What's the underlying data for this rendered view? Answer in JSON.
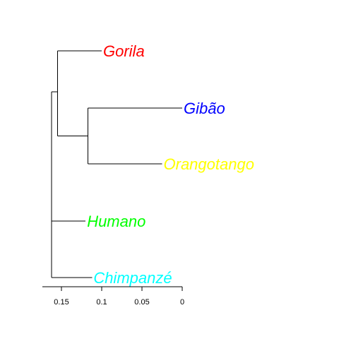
{
  "tree": {
    "tips": [
      {
        "id": "gorila",
        "label": "Gorila",
        "color": "#ff0000"
      },
      {
        "id": "gibao",
        "label": "Gibão",
        "color": "#0000ff"
      },
      {
        "id": "orangotango",
        "label": "Orangotango",
        "color": "#ffff00"
      },
      {
        "id": "humano",
        "label": "Humano",
        "color": "#00ff00"
      },
      {
        "id": "chimpanze",
        "label": "Chimpanzé",
        "color": "#00ffff"
      }
    ],
    "node_heights": {
      "root": 0.1625,
      "gorila_clade": 0.155,
      "gibao_orangotango": 0.117,
      "gorila": 0.1,
      "gibao": 0.0,
      "orangotango": 0.025,
      "humano": 0.12,
      "chimpanze": 0.112
    },
    "axis": {
      "ticks": [
        {
          "value": 0.15,
          "label": "0.15"
        },
        {
          "value": 0.1,
          "label": "0.1"
        },
        {
          "value": 0.05,
          "label": "0.05"
        },
        {
          "value": 0,
          "label": "0"
        }
      ]
    }
  }
}
